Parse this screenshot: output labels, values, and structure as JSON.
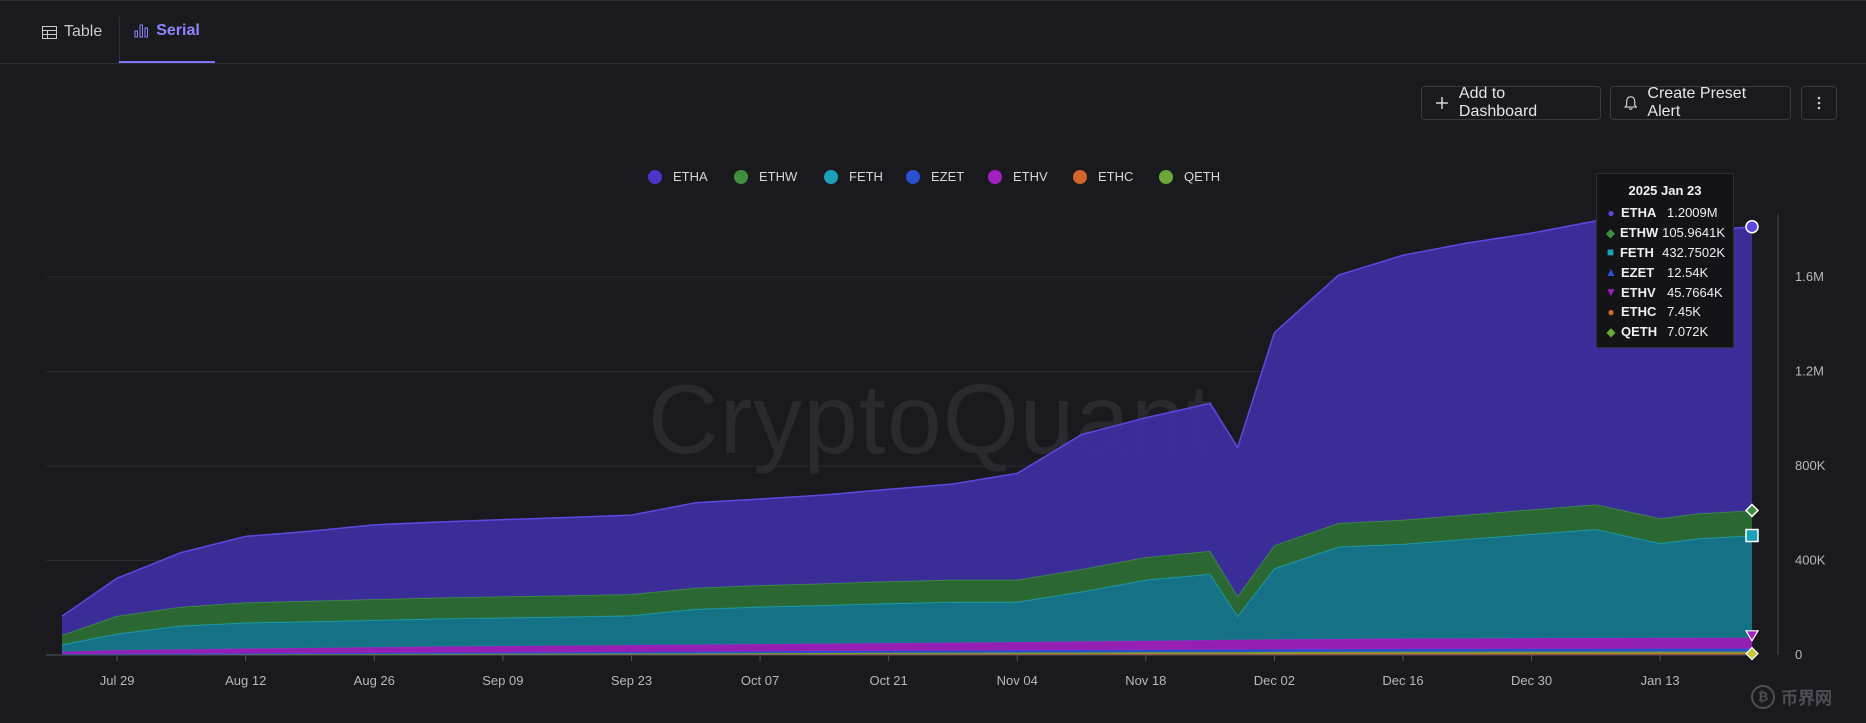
{
  "tabs": [
    {
      "label": "Table",
      "icon": "table-icon",
      "active": false
    },
    {
      "label": "Serial",
      "icon": "bar-chart-icon",
      "active": true
    }
  ],
  "toolbar": {
    "add_label": "Add to Dashboard",
    "alert_label": "Create Preset Alert",
    "more_icon": "vertical-dots-icon"
  },
  "watermark": "CryptoQuant",
  "corner_logo": "币界网",
  "tooltip": {
    "date": "2025 Jan 23",
    "rows": [
      {
        "name": "ETHA",
        "value": "1.2009M",
        "marker": "●",
        "color": "#5a47d6"
      },
      {
        "name": "ETHW",
        "value": "105.9641K",
        "marker": "◆",
        "color": "#3f8f3f"
      },
      {
        "name": "FETH",
        "value": "432.7502K",
        "marker": "■",
        "color": "#1aa0b8"
      },
      {
        "name": "EZET",
        "value": "12.54K",
        "marker": "▲",
        "color": "#2b4fd1"
      },
      {
        "name": "ETHV",
        "value": "45.7664K",
        "marker": "▼",
        "color": "#a020c0"
      },
      {
        "name": "ETHC",
        "value": "7.45K",
        "marker": "●",
        "color": "#d2662b"
      },
      {
        "name": "QETH",
        "value": "7.072K",
        "marker": "◆",
        "color": "#6aa838"
      }
    ]
  },
  "chart_data": {
    "type": "area",
    "stacked": true,
    "x": [
      "2024-07-23",
      "2024-07-29",
      "2024-08-05",
      "2024-08-12",
      "2024-08-19",
      "2024-08-26",
      "2024-09-02",
      "2024-09-09",
      "2024-09-16",
      "2024-09-23",
      "2024-09-30",
      "2024-10-07",
      "2024-10-14",
      "2024-10-21",
      "2024-10-28",
      "2024-11-04",
      "2024-11-11",
      "2024-11-18",
      "2024-11-25",
      "2024-11-28",
      "2024-12-02",
      "2024-12-09",
      "2024-12-16",
      "2024-12-23",
      "2024-12-30",
      "2025-01-06",
      "2025-01-13",
      "2025-01-17",
      "2025-01-23"
    ],
    "x_tick_labels": [
      "Jul 29",
      "Aug 12",
      "Aug 26",
      "Sep 09",
      "Sep 23",
      "Oct 07",
      "Oct 21",
      "Nov 04",
      "Nov 18",
      "Dec 02",
      "Dec 16",
      "Dec 30",
      "Jan 13"
    ],
    "x_tick_index": [
      1,
      3,
      5,
      7,
      9,
      11,
      13,
      15,
      17,
      20,
      22,
      24,
      26
    ],
    "y_ticks": [
      0,
      400000,
      800000,
      1200000,
      1600000
    ],
    "y_tick_labels": [
      "0",
      "400K",
      "800K",
      "1.2M",
      "1.6M"
    ],
    "ylim": [
      0,
      1900000
    ],
    "grid": true,
    "legend_position": "top-center",
    "series": [
      {
        "name": "ETHC",
        "color": "#d2662b",
        "values": [
          1000,
          1200,
          1500,
          1800,
          2000,
          2200,
          2500,
          2700,
          3000,
          3300,
          3600,
          3900,
          4200,
          4500,
          4800,
          5100,
          5500,
          5800,
          6000,
          6200,
          6400,
          6700,
          7000,
          7100,
          7200,
          7300,
          7350,
          7400,
          7450
        ]
      },
      {
        "name": "QETH",
        "color": "#6aa838",
        "values": [
          1000,
          1200,
          1400,
          1600,
          1800,
          2000,
          2300,
          2600,
          2900,
          3200,
          3500,
          3800,
          4100,
          4400,
          4700,
          5000,
          5300,
          5600,
          5900,
          6100,
          6300,
          6500,
          6700,
          6800,
          6900,
          6950,
          7000,
          7040,
          7072
        ]
      },
      {
        "name": "EZET",
        "color": "#2b4fd1",
        "values": [
          2000,
          2500,
          3000,
          3500,
          4000,
          4500,
          5000,
          5500,
          6000,
          6500,
          7000,
          7500,
          8000,
          8500,
          9000,
          9500,
          10000,
          10500,
          11000,
          11200,
          11400,
          11700,
          12000,
          12200,
          12300,
          12400,
          12450,
          12500,
          12540
        ]
      },
      {
        "name": "ETHV",
        "color": "#a020c0",
        "values": [
          10000,
          15000,
          18000,
          20000,
          22000,
          24000,
          26000,
          27000,
          28000,
          29000,
          30000,
          31000,
          32000,
          33000,
          34000,
          35000,
          37000,
          38000,
          40000,
          41000,
          42000,
          43000,
          44000,
          44500,
          45000,
          45300,
          45500,
          45700,
          45766
        ]
      },
      {
        "name": "FETH",
        "color": "#1aa0b8",
        "values": [
          30000,
          70000,
          100000,
          110000,
          112000,
          115000,
          118000,
          120000,
          122000,
          125000,
          150000,
          158000,
          162000,
          168000,
          172000,
          170000,
          210000,
          258000,
          280000,
          100000,
          300000,
          390000,
          400000,
          420000,
          440000,
          460000,
          400000,
          420000,
          432750
        ]
      },
      {
        "name": "ETHW",
        "color": "#3f8f3f",
        "values": [
          40000,
          75000,
          80000,
          85000,
          87000,
          88000,
          89000,
          90000,
          90000,
          90000,
          90000,
          91000,
          92000,
          93000,
          94000,
          94000,
          95000,
          96000,
          97000,
          84000,
          98000,
          100000,
          102000,
          103000,
          104000,
          105000,
          105500,
          105800,
          105964
        ]
      },
      {
        "name": "ETHA",
        "color": "#3d2fa3",
        "values": [
          80000,
          160000,
          230000,
          280000,
          295000,
          315000,
          320000,
          325000,
          330000,
          335000,
          360000,
          365000,
          375000,
          390000,
          405000,
          450000,
          570000,
          590000,
          625000,
          630000,
          900000,
          1050000,
          1120000,
          1150000,
          1170000,
          1200000,
          1190000,
          1195000,
          1200900
        ]
      }
    ]
  }
}
